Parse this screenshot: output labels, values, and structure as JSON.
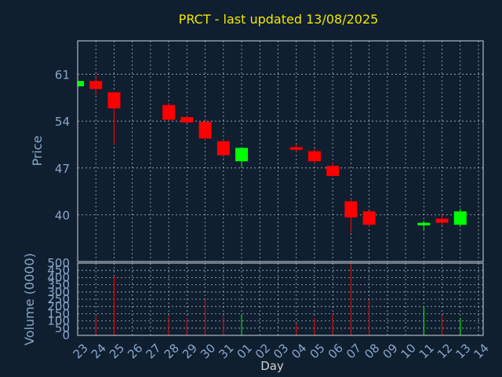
{
  "chart_data": {
    "type": "candlestick",
    "title": "PRCT - last updated 13/08/2025",
    "price_ylabel": "Price",
    "volume_ylabel": "Volume (0000)",
    "xlabel": "Day",
    "x_tick_labels": [
      "23",
      "24",
      "25",
      "26",
      "27",
      "28",
      "29",
      "30",
      "31",
      "01",
      "02",
      "03",
      "04",
      "05",
      "06",
      "07",
      "08",
      "09",
      "10",
      "11",
      "12",
      "13",
      "14"
    ],
    "price_ylim": [
      33,
      66
    ],
    "price_yticks": [
      40,
      47,
      54,
      61
    ],
    "volume_ylim": [
      0,
      500
    ],
    "volume_yticks": [
      0,
      50,
      100,
      150,
      200,
      250,
      300,
      350,
      400,
      450,
      500
    ],
    "up_color": "#00ff00",
    "down_color": "#ff0000",
    "candles": [
      {
        "day": "23",
        "open": 59.2,
        "high": 60.2,
        "low": 58.9,
        "close": 60.0,
        "volume": 20
      },
      {
        "day": "24",
        "open": 60.0,
        "high": 60.9,
        "low": 57.9,
        "close": 58.8,
        "volume": 130
      },
      {
        "day": "25",
        "open": 58.3,
        "high": 58.4,
        "low": 50.6,
        "close": 55.9,
        "volume": 410
      },
      {
        "day": "28",
        "open": 56.4,
        "high": 56.8,
        "low": 54.0,
        "close": 54.2,
        "volume": 130
      },
      {
        "day": "29",
        "open": 54.6,
        "high": 54.8,
        "low": 53.6,
        "close": 53.8,
        "volume": 120
      },
      {
        "day": "30",
        "open": 53.9,
        "high": 54.1,
        "low": 51.1,
        "close": 51.4,
        "volume": 250
      },
      {
        "day": "31",
        "open": 51.0,
        "high": 51.2,
        "low": 48.5,
        "close": 48.9,
        "volume": 130
      },
      {
        "day": "01",
        "open": 48.0,
        "high": 50.1,
        "low": 47.0,
        "close": 50.0,
        "volume": 140
      },
      {
        "day": "04",
        "open": 50.1,
        "high": 50.5,
        "low": 49.4,
        "close": 49.7,
        "volume": 80
      },
      {
        "day": "05",
        "open": 49.5,
        "high": 49.9,
        "low": 47.6,
        "close": 48.0,
        "volume": 120
      },
      {
        "day": "06",
        "open": 47.3,
        "high": 47.8,
        "low": 45.7,
        "close": 45.8,
        "volume": 150
      },
      {
        "day": "07",
        "open": 42.0,
        "high": 42.4,
        "low": 37.3,
        "close": 39.6,
        "volume": 500
      },
      {
        "day": "08",
        "open": 40.5,
        "high": 40.6,
        "low": 38.2,
        "close": 38.5,
        "volume": 240
      },
      {
        "day": "11",
        "open": 38.4,
        "high": 39.1,
        "low": 37.6,
        "close": 38.8,
        "volume": 200
      },
      {
        "day": "12",
        "open": 39.4,
        "high": 40.1,
        "low": 38.4,
        "close": 38.8,
        "volume": 130
      },
      {
        "day": "13",
        "open": 38.5,
        "high": 40.9,
        "low": 38.3,
        "close": 40.5,
        "volume": 120
      }
    ]
  }
}
